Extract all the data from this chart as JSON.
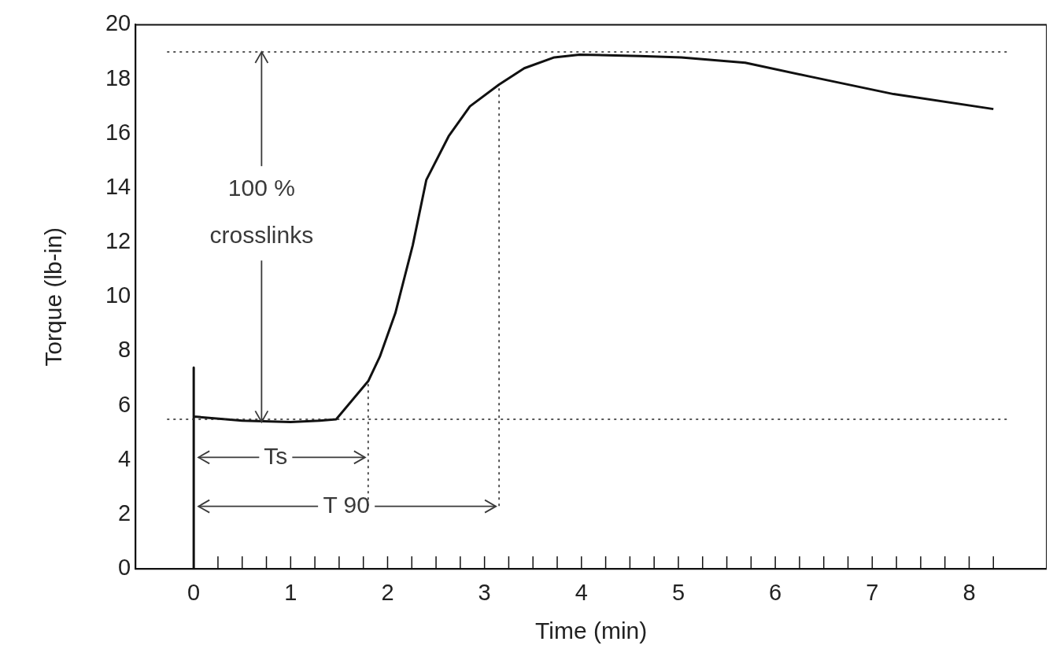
{
  "chart_data": {
    "type": "line",
    "xlabel": "Time (min)",
    "ylabel": "Torque (lb-in)",
    "xlim": [
      -0.6,
      8.8
    ],
    "ylim": [
      0,
      20
    ],
    "xticks": [
      0,
      {
        "value": 0.25,
        "label": null
      },
      {
        "value": 0.5,
        "label": null
      },
      {
        "value": 0.75,
        "label": null
      },
      1,
      {
        "value": 1.25,
        "label": null
      },
      {
        "value": 1.5,
        "label": null
      },
      {
        "value": 1.75,
        "label": null
      },
      2,
      {
        "value": 2.25,
        "label": null
      },
      {
        "value": 2.5,
        "label": null
      },
      {
        "value": 2.75,
        "label": null
      },
      3,
      {
        "value": 3.25,
        "label": null
      },
      {
        "value": 3.5,
        "label": null
      },
      {
        "value": 3.75,
        "label": null
      },
      4,
      {
        "value": 4.25,
        "label": null
      },
      {
        "value": 4.5,
        "label": null
      },
      {
        "value": 4.75,
        "label": null
      },
      5,
      {
        "value": 5.25,
        "label": null
      },
      {
        "value": 5.5,
        "label": null
      },
      {
        "value": 5.75,
        "label": null
      },
      6,
      {
        "value": 6.25,
        "label": null
      },
      {
        "value": 6.5,
        "label": null
      },
      {
        "value": 6.75,
        "label": null
      },
      7,
      {
        "value": 7.25,
        "label": null
      },
      {
        "value": 7.5,
        "label": null
      },
      {
        "value": 7.75,
        "label": null
      },
      8,
      {
        "value": 8.25,
        "label": null
      }
    ],
    "yticks": [
      0,
      2,
      4,
      6,
      8,
      10,
      12,
      14,
      16,
      18,
      20
    ],
    "series": [
      {
        "color": "#111111",
        "x": [
          0,
          0,
          0,
          0.5,
          1.0,
          1.3,
          1.47,
          1.8,
          1.92,
          2.08,
          2.26,
          2.4,
          2.63,
          2.85,
          3.15,
          3.41,
          3.72,
          3.98,
          4.6,
          5.03,
          5.69,
          6.35,
          7.22,
          8.25
        ],
        "values": [
          0,
          7.4,
          5.6,
          5.45,
          5.4,
          5.45,
          5.5,
          6.9,
          7.8,
          9.4,
          11.9,
          14.3,
          15.9,
          17.0,
          17.8,
          18.4,
          18.8,
          18.9,
          18.85,
          18.8,
          18.6,
          18.1,
          17.45,
          16.9
        ]
      }
    ],
    "ref_lines": [
      {
        "axis": "y",
        "value": 19,
        "line_style": "dotted",
        "color": "#222222"
      },
      {
        "axis": "x",
        "value": 1.8,
        "line_style": "dotted",
        "color": "#222222"
      },
      {
        "axis": "x",
        "value": 3.15,
        "line_style": "dotted",
        "color": "#222222"
      },
      {
        "axis": "y",
        "value": 5.5,
        "line_style": "dotted",
        "color": "#222222"
      }
    ],
    "annotations": [
      {
        "text": "100 % crosslinks",
        "x": 0.7,
        "y": 5.4
      },
      {
        "text": "Ts",
        "x": 1.8,
        "y": 4.1
      },
      {
        "text": "T 90",
        "x": 3.15,
        "y": 2.3
      }
    ],
    "marker": "none",
    "line_style": "solid",
    "grid": false,
    "legend": false
  }
}
